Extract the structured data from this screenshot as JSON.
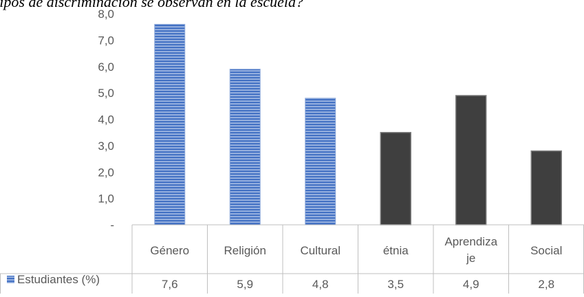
{
  "caption": "¿Qué tipos de discriminación se observan en la escuela?",
  "chart_data": {
    "type": "bar",
    "categories": [
      "Género",
      "Religión",
      "Cultural",
      "étnia",
      "Aprendiza je",
      "Social"
    ],
    "series": [
      {
        "name": "Estudiantes (%)",
        "values": [
          7.6,
          5.9,
          4.8,
          3.5,
          4.9,
          2.8
        ],
        "value_labels": [
          "7,6",
          "5,9",
          "4,8",
          "3,5",
          "4,9",
          "2,8"
        ]
      }
    ],
    "bar_styles": [
      "striped-blue",
      "striped-blue",
      "striped-blue",
      "solid-dark",
      "solid-dark",
      "solid-dark"
    ],
    "ylim": [
      0,
      8
    ],
    "y_ticks": [
      {
        "value": 0,
        "label": "-"
      },
      {
        "value": 1,
        "label": "1,0"
      },
      {
        "value": 2,
        "label": "2,0"
      },
      {
        "value": 3,
        "label": "3,0"
      },
      {
        "value": 4,
        "label": "4,0"
      },
      {
        "value": 5,
        "label": "5,0"
      },
      {
        "value": 6,
        "label": "6,0"
      },
      {
        "value": 7,
        "label": "7,0"
      },
      {
        "value": 8,
        "label": "8,0"
      }
    ],
    "grid": false,
    "legend": "data-table-left",
    "data_table": true,
    "colors": {
      "striped_blue_fill": "#4472c4",
      "striped_blue_stripe": "#c9d6ef",
      "solid_dark_fill": "#3f3f3f",
      "solid_dark_edge": "#7f7f7f",
      "table_line": "#bfbfbf",
      "text": "#595959"
    }
  }
}
